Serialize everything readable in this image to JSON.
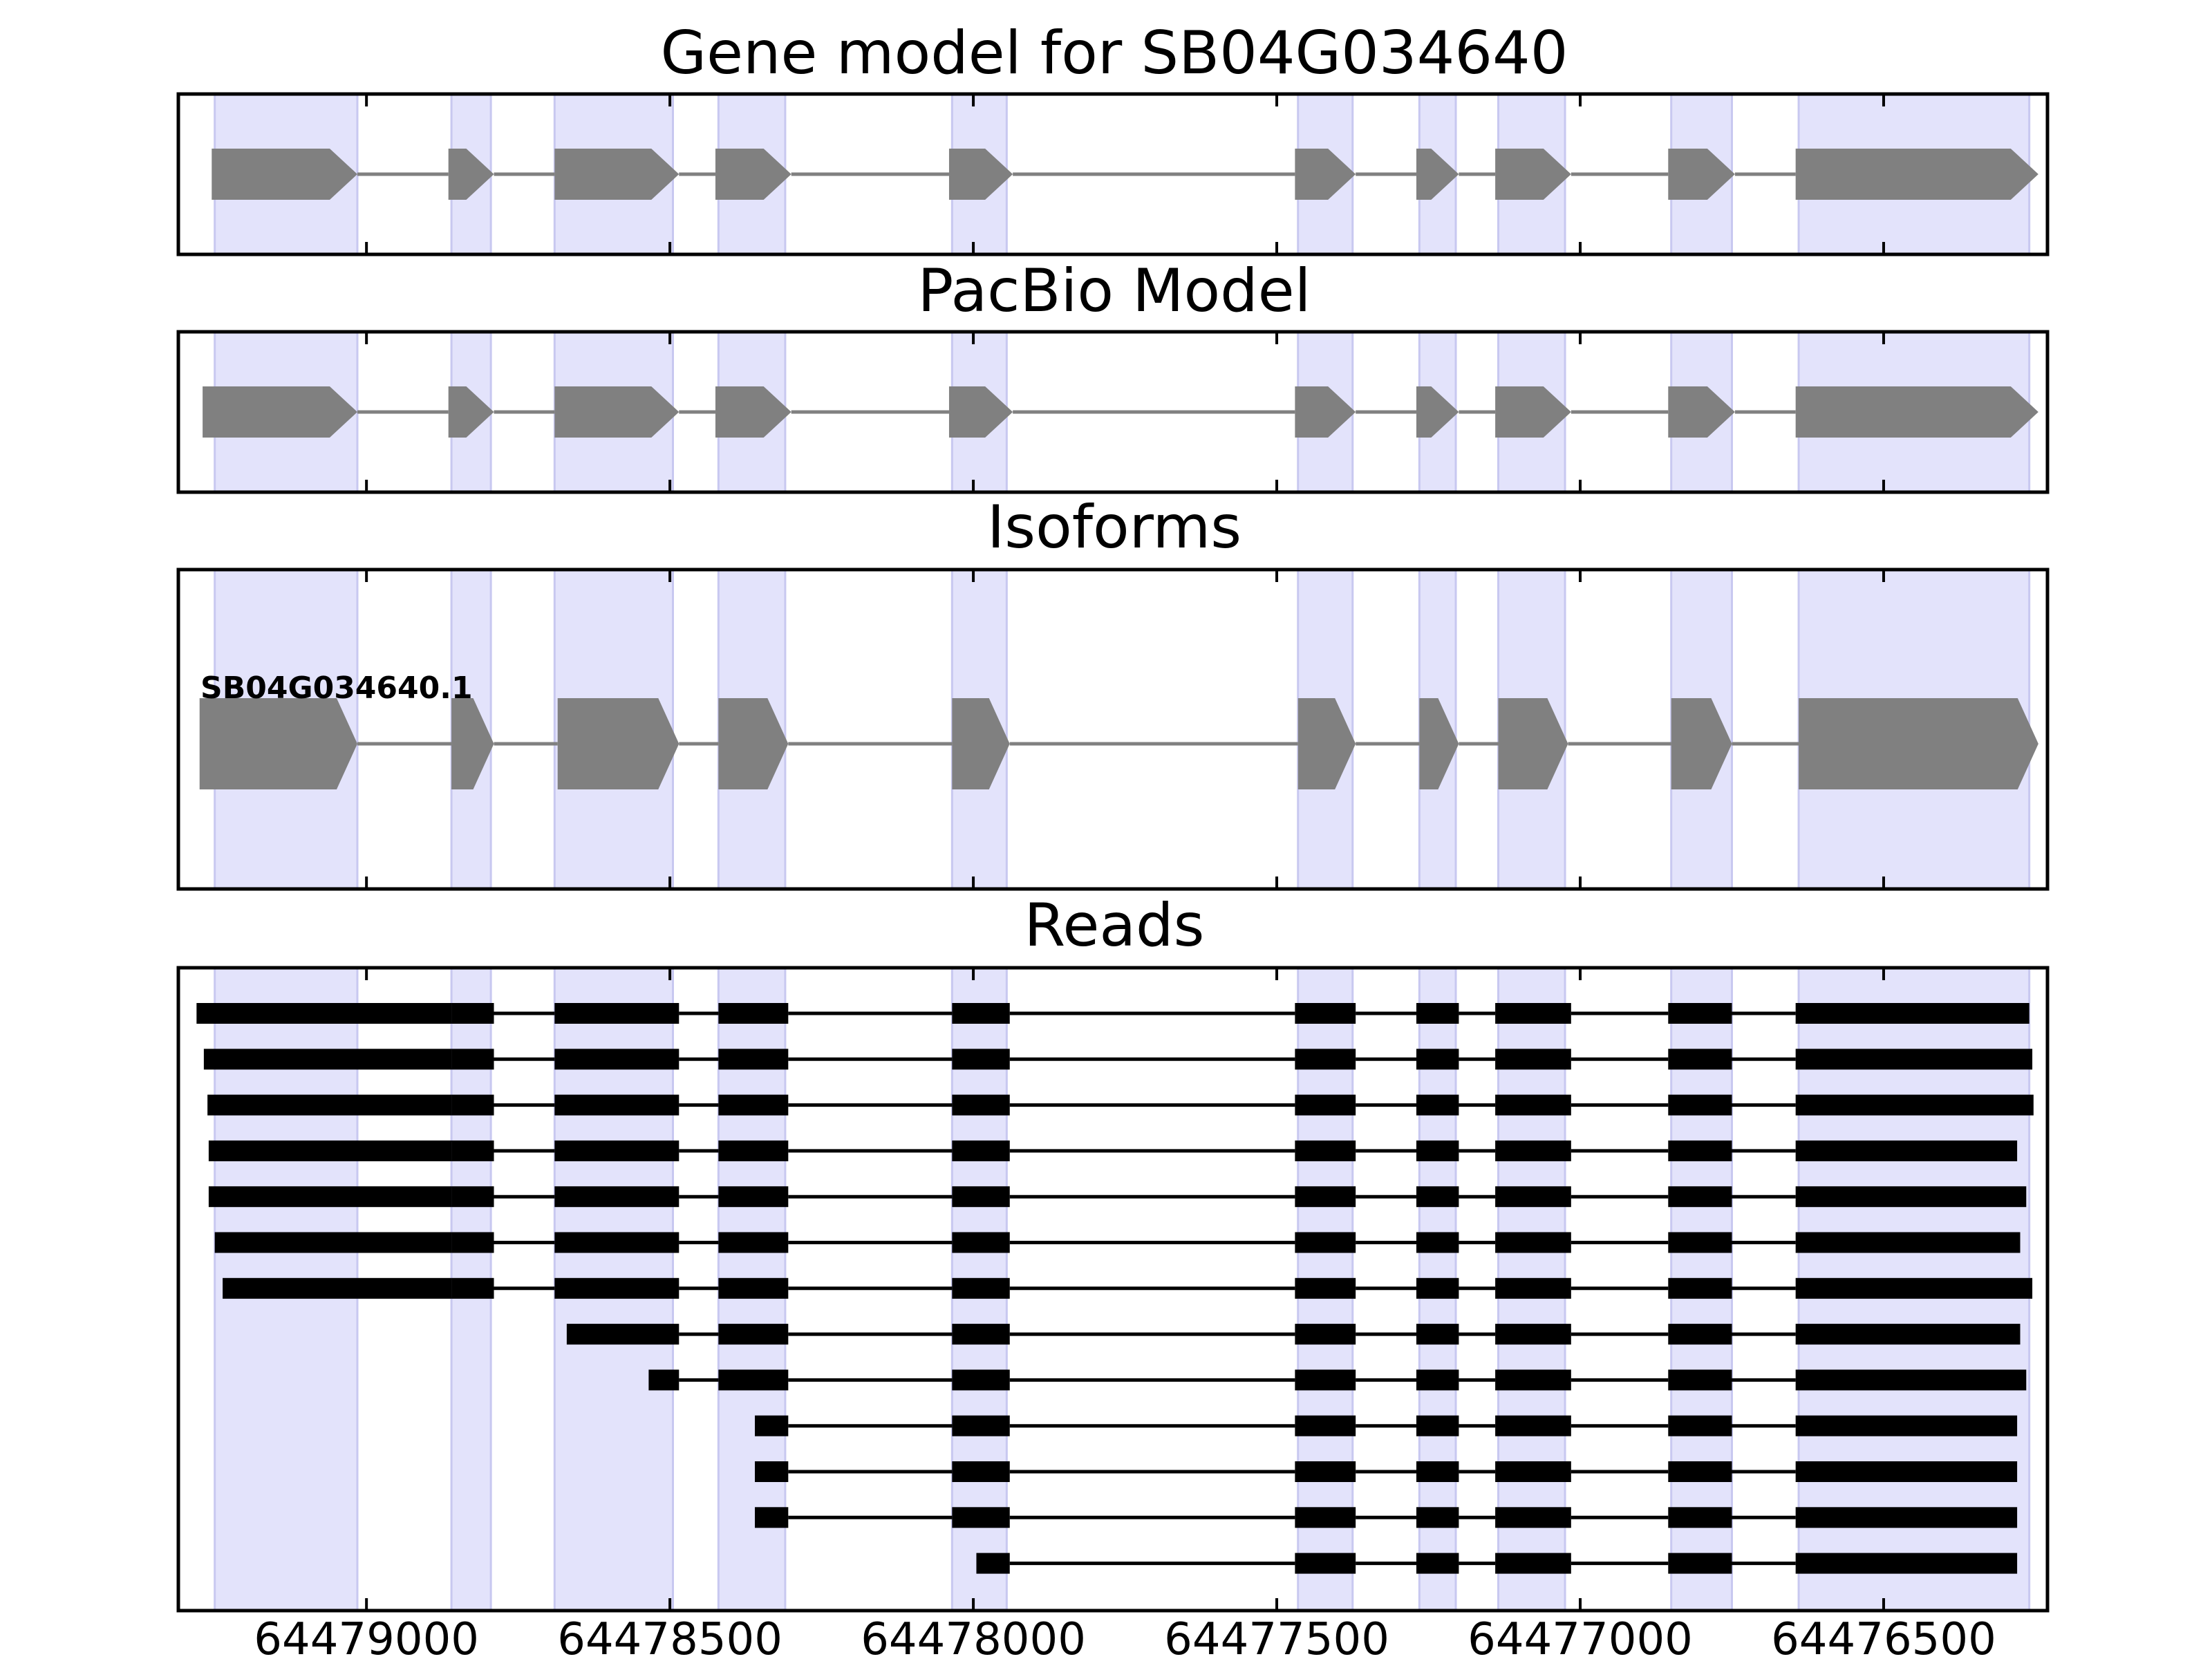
{
  "figure": {
    "colors": {
      "shade": "#e3e3fb",
      "shade_edge": "#c8c8f0",
      "exon": "#808080",
      "intron": "#808080",
      "read": "#000000",
      "frame": "#000000"
    }
  },
  "chart_data": {
    "type": "gene-structure",
    "x_axis": {
      "reversed": true,
      "xlim": [
        64479310,
        64476230
      ],
      "ticks": [
        64479000,
        64478500,
        64478000,
        64477500,
        64477000,
        64476500
      ],
      "tick_labels": [
        "64479000",
        "64478500",
        "64478000",
        "64477500",
        "64477000",
        "64476500"
      ]
    },
    "shaded_regions": [
      [
        64479250,
        64479015
      ],
      [
        64478860,
        64478795
      ],
      [
        64478690,
        64478495
      ],
      [
        64478420,
        64478310
      ],
      [
        64478035,
        64477945
      ],
      [
        64477465,
        64477375
      ],
      [
        64477265,
        64477205
      ],
      [
        64477135,
        64477025
      ],
      [
        64476850,
        64476750
      ],
      [
        64476640,
        64476260
      ]
    ],
    "panels": [
      {
        "title": "Gene model for SB04G034640",
        "exons": [
          [
            64479255,
            64479015
          ],
          [
            64478865,
            64478790
          ],
          [
            64478690,
            64478485
          ],
          [
            64478425,
            64478300
          ],
          [
            64478040,
            64477935
          ],
          [
            64477470,
            64477370
          ],
          [
            64477270,
            64477200
          ],
          [
            64477140,
            64477015
          ],
          [
            64476855,
            64476745
          ],
          [
            64476645,
            64476245
          ]
        ]
      },
      {
        "title": "PacBio Model",
        "exons": [
          [
            64479270,
            64479015
          ],
          [
            64478865,
            64478790
          ],
          [
            64478690,
            64478485
          ],
          [
            64478425,
            64478300
          ],
          [
            64478040,
            64477935
          ],
          [
            64477470,
            64477370
          ],
          [
            64477270,
            64477200
          ],
          [
            64477140,
            64477015
          ],
          [
            64476855,
            64476745
          ],
          [
            64476645,
            64476245
          ]
        ]
      },
      {
        "title": "Isoforms",
        "isoform_label": "SB04G034640.1",
        "exons": [
          [
            64479275,
            64479015
          ],
          [
            64478860,
            64478790
          ],
          [
            64478685,
            64478485
          ],
          [
            64478420,
            64478305
          ],
          [
            64478035,
            64477940
          ],
          [
            64477465,
            64477370
          ],
          [
            64477265,
            64477200
          ],
          [
            64477135,
            64477020
          ],
          [
            64476850,
            64476750
          ],
          [
            64476640,
            64476245
          ]
        ]
      },
      {
        "title": "Reads",
        "reads": [
          {
            "start": 64479280,
            "end": 64476260
          },
          {
            "start": 64479268,
            "end": 64476255
          },
          {
            "start": 64479262,
            "end": 64476253
          },
          {
            "start": 64479260,
            "end": 64476280
          },
          {
            "start": 64479260,
            "end": 64476265
          },
          {
            "start": 64479250,
            "end": 64476275
          },
          {
            "start": 64479237,
            "end": 64476255
          },
          {
            "start": 64478670,
            "end": 64476275
          },
          {
            "start": 64478535,
            "end": 64476265
          },
          {
            "start": 64478360,
            "end": 64476280
          },
          {
            "start": 64478360,
            "end": 64476280
          },
          {
            "start": 64478360,
            "end": 64476280
          },
          {
            "start": 64477995,
            "end": 64476280
          }
        ],
        "read_exons": [
          [
            64479015,
            64478860
          ],
          [
            64478860,
            64478790
          ],
          [
            64478690,
            64478485
          ],
          [
            64478420,
            64478305
          ],
          [
            64478035,
            64477940
          ],
          [
            64477470,
            64477370
          ],
          [
            64477270,
            64477200
          ],
          [
            64477140,
            64477015
          ],
          [
            64476855,
            64476750
          ],
          [
            64476645,
            null
          ]
        ]
      }
    ]
  }
}
